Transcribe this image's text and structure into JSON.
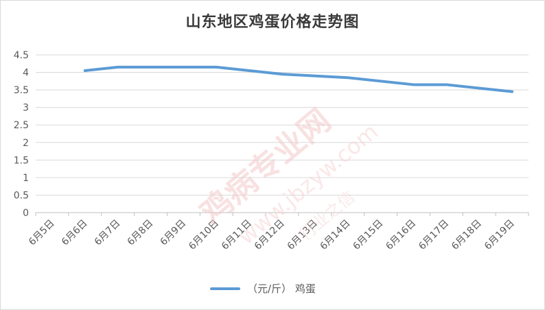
{
  "chart_data": {
    "type": "line",
    "title": "山东地区鸡蛋价格走势图",
    "categories": [
      "6月5日",
      "6月6日",
      "6月7日",
      "6月8日",
      "6月9日",
      "6月10日",
      "6月11日",
      "6月12日",
      "6月13日",
      "6月14日",
      "6月15日",
      "6月16日",
      "6月17日",
      "6月18日",
      "6月19日"
    ],
    "series": [
      {
        "name": "（元/斤） 鸡蛋",
        "values": [
          null,
          4.05,
          4.15,
          4.15,
          4.15,
          4.15,
          null,
          3.95,
          null,
          3.85,
          null,
          3.65,
          3.65,
          null,
          3.45
        ],
        "color": "#5b9bd5"
      }
    ],
    "yticks": [
      "0",
      "0.5",
      "1",
      "1.5",
      "2",
      "2.5",
      "3",
      "3.5",
      "4",
      "4.5"
    ],
    "ylim": [
      0,
      4.5
    ],
    "grid": true,
    "legend_position": "bottom"
  },
  "watermark": {
    "text": "鸡病专业网",
    "url": "www.jbzyw.com",
    "slogan": "行业之信",
    "color": "#f4c9c9"
  }
}
